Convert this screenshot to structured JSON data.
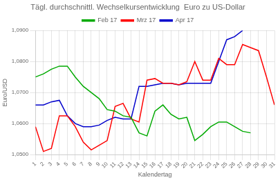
{
  "chart_data": {
    "type": "line",
    "title": "Tägl. durchschnittl. Wechselkursentwicklung  Euro zu US-Dollar",
    "x_label": "Kalendertag",
    "y_label": "Euro/USD",
    "x": [
      1,
      2,
      3,
      4,
      5,
      6,
      7,
      8,
      9,
      10,
      11,
      12,
      13,
      14,
      15,
      16,
      17,
      18,
      19,
      20,
      21,
      22,
      23,
      24,
      25,
      26,
      27,
      28,
      29,
      30,
      31
    ],
    "series": [
      {
        "name": "Feb 17",
        "color": "#00AA00",
        "values": [
          1.075,
          1.076,
          1.0775,
          1.0785,
          1.0785,
          1.075,
          1.072,
          1.07,
          1.068,
          1.0645,
          1.064,
          1.0625,
          1.062,
          1.057,
          1.056,
          1.064,
          1.066,
          1.063,
          1.0615,
          1.062,
          1.0545,
          1.0565,
          1.059,
          1.0605,
          1.0605,
          1.059,
          1.0575,
          1.057,
          null,
          null,
          null
        ]
      },
      {
        "name": "Mrz 17",
        "color": "#FF0000",
        "values": [
          1.059,
          1.051,
          1.052,
          1.0625,
          1.0625,
          1.059,
          1.054,
          1.0515,
          1.053,
          1.0545,
          1.0655,
          1.0665,
          1.0615,
          1.0605,
          1.074,
          1.0745,
          1.073,
          1.073,
          1.0725,
          1.0735,
          1.08,
          1.074,
          1.074,
          1.081,
          1.079,
          1.079,
          1.0855,
          1.0845,
          1.0835,
          1.075,
          1.066
        ]
      },
      {
        "name": "Apr 17",
        "color": "#0000CC",
        "values": [
          1.066,
          1.066,
          1.067,
          1.0675,
          1.0625,
          1.06,
          1.059,
          1.059,
          1.0595,
          1.061,
          1.062,
          1.0615,
          1.0615,
          1.072,
          1.072,
          1.0725,
          1.073,
          1.073,
          1.0725,
          1.073,
          1.073,
          1.073,
          1.073,
          1.08,
          1.087,
          1.088,
          1.09,
          null,
          null,
          null,
          null
        ]
      }
    ],
    "xlim": [
      1,
      31
    ],
    "xticks": [
      1,
      2,
      3,
      4,
      5,
      6,
      7,
      8,
      9,
      10,
      11,
      12,
      13,
      14,
      15,
      16,
      17,
      18,
      19,
      20,
      21,
      22,
      23,
      24,
      25,
      26,
      27,
      28,
      29,
      30,
      31
    ],
    "ylim": [
      1.05,
      1.09
    ],
    "yticks": [
      {
        "value": 1.05,
        "label": "1,0500"
      },
      {
        "value": 1.06,
        "label": "1,0600"
      },
      {
        "value": 1.07,
        "label": "1,0700"
      },
      {
        "value": 1.08,
        "label": "1,0800"
      },
      {
        "value": 1.09,
        "label": "1,0900"
      }
    ],
    "grid": true,
    "legend": "top"
  }
}
